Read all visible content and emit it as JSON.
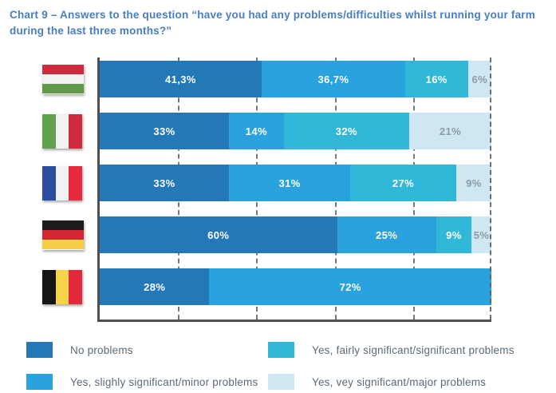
{
  "title": "Chart 9 – Answers to the question “have you had any problems/difficulties whilst running your farm during the last three months?”",
  "theme": {
    "title": "#4a7ec0",
    "axis": "#4f4f4f",
    "grid": "#55636d",
    "legend_text": "#5b6b78",
    "light_label": "#8e9aa6",
    "background": "#ffffff"
  },
  "chart_data": {
    "type": "bar",
    "orientation": "horizontal",
    "stacked": true,
    "title": "Chart 9 – Answers to the question “have you had any problems/difficulties whilst running your farm during the last three months?”",
    "categories": [
      "Hungary",
      "Italy",
      "France",
      "Germany",
      "Belgium"
    ],
    "series": [
      {
        "name": "No problems",
        "color": "#2478b8",
        "values": [
          41.3,
          33,
          33,
          60,
          28
        ]
      },
      {
        "name": "Yes, slighly significant/minor problems",
        "color": "#29a2de",
        "values": [
          36.7,
          14,
          31,
          25,
          72
        ]
      },
      {
        "name": "Yes, fairly significant/significant problems",
        "color": "#31b7d8",
        "values": [
          16,
          32,
          27,
          9,
          null
        ]
      },
      {
        "name": "Yes, vey significant/major problems",
        "color": "#cfe7f3",
        "values": [
          6,
          21,
          9,
          5,
          null
        ]
      }
    ],
    "value_labels": [
      [
        "41,3%",
        "36,7%",
        "16%",
        "6%"
      ],
      [
        "33%",
        "14%",
        "32%",
        "21%"
      ],
      [
        "33%",
        "31%",
        "27%",
        "9%"
      ],
      [
        "60%",
        "25%",
        "9%",
        "5%"
      ],
      [
        "28%",
        "72%"
      ]
    ],
    "xlim": [
      0,
      100
    ],
    "gridline_interval": 20,
    "grid": "dashed-vertical",
    "axis_tick_labels": [],
    "legend_position": "bottom"
  },
  "flags": [
    {
      "country": "Hungary",
      "direction": "horizontal",
      "colors": [
        "#ce2b3e",
        "#f2f2f2",
        "#5f9a49"
      ]
    },
    {
      "country": "Italy",
      "direction": "vertical",
      "colors": [
        "#62a14d",
        "#f2f2f2",
        "#ce2b3e"
      ]
    },
    {
      "country": "France",
      "direction": "vertical",
      "colors": [
        "#2b4d9e",
        "#f2f2f2",
        "#e8293c"
      ]
    },
    {
      "country": "Germany",
      "direction": "horizontal",
      "colors": [
        "#1c1c1c",
        "#d22732",
        "#f6cf47"
      ]
    },
    {
      "country": "Belgium",
      "direction": "vertical",
      "colors": [
        "#151515",
        "#f4d44b",
        "#e2283b"
      ]
    }
  ]
}
